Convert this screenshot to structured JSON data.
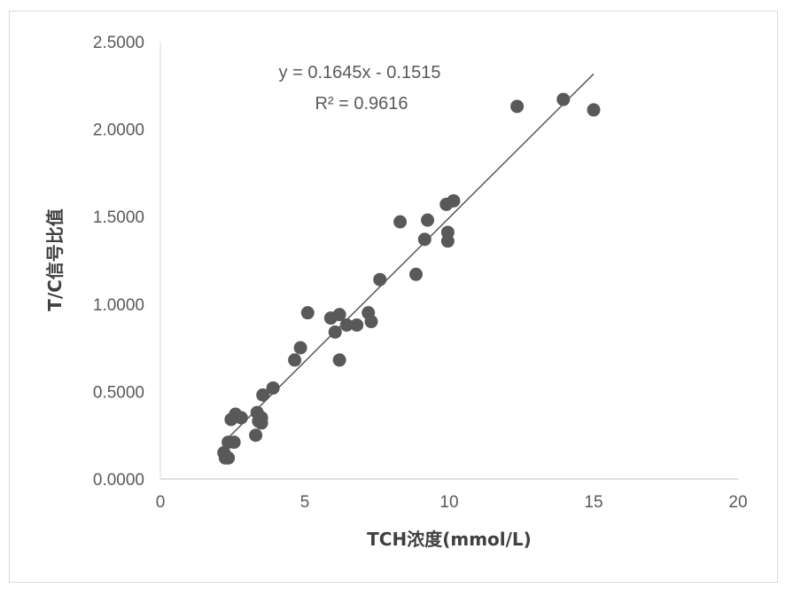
{
  "chart_data": {
    "type": "scatter",
    "xlabel": "TCH浓度(mmol/L)",
    "ylabel": "T/C信号比值",
    "xlim": [
      0,
      20
    ],
    "ylim": [
      0,
      2.5
    ],
    "x_ticks": [
      "0",
      "5",
      "10",
      "15",
      "20"
    ],
    "y_ticks": [
      "0.0000",
      "0.5000",
      "1.0000",
      "1.5000",
      "2.0000",
      "2.5000"
    ],
    "grid": false,
    "legend": "none",
    "marker_color": "#595959",
    "trendline": {
      "slope": 0.1645,
      "intercept": -0.1515,
      "x_range": [
        2.2,
        15.0
      ],
      "equation": "y = 0.1645x - 0.1515",
      "r_squared": "R² = 0.9616"
    },
    "points": [
      {
        "x": 2.2,
        "y": 0.15
      },
      {
        "x": 2.25,
        "y": 0.12
      },
      {
        "x": 2.35,
        "y": 0.12
      },
      {
        "x": 2.35,
        "y": 0.21
      },
      {
        "x": 2.45,
        "y": 0.34
      },
      {
        "x": 2.55,
        "y": 0.21
      },
      {
        "x": 2.6,
        "y": 0.37
      },
      {
        "x": 2.8,
        "y": 0.35
      },
      {
        "x": 3.3,
        "y": 0.25
      },
      {
        "x": 3.35,
        "y": 0.38
      },
      {
        "x": 3.4,
        "y": 0.33
      },
      {
        "x": 3.5,
        "y": 0.35
      },
      {
        "x": 3.5,
        "y": 0.32
      },
      {
        "x": 3.55,
        "y": 0.48
      },
      {
        "x": 3.9,
        "y": 0.52
      },
      {
        "x": 4.65,
        "y": 0.68
      },
      {
        "x": 4.85,
        "y": 0.75
      },
      {
        "x": 5.1,
        "y": 0.95
      },
      {
        "x": 5.9,
        "y": 0.92
      },
      {
        "x": 6.05,
        "y": 0.84
      },
      {
        "x": 6.2,
        "y": 0.94
      },
      {
        "x": 6.2,
        "y": 0.68
      },
      {
        "x": 6.45,
        "y": 0.88
      },
      {
        "x": 6.8,
        "y": 0.88
      },
      {
        "x": 7.2,
        "y": 0.95
      },
      {
        "x": 7.3,
        "y": 0.9
      },
      {
        "x": 7.6,
        "y": 1.14
      },
      {
        "x": 8.3,
        "y": 1.47
      },
      {
        "x": 8.85,
        "y": 1.17
      },
      {
        "x": 9.15,
        "y": 1.37
      },
      {
        "x": 9.25,
        "y": 1.48
      },
      {
        "x": 9.9,
        "y": 1.57
      },
      {
        "x": 9.95,
        "y": 1.41
      },
      {
        "x": 9.95,
        "y": 1.36
      },
      {
        "x": 10.15,
        "y": 1.59
      },
      {
        "x": 12.35,
        "y": 2.13
      },
      {
        "x": 13.95,
        "y": 2.17
      },
      {
        "x": 15.0,
        "y": 2.11
      }
    ]
  }
}
